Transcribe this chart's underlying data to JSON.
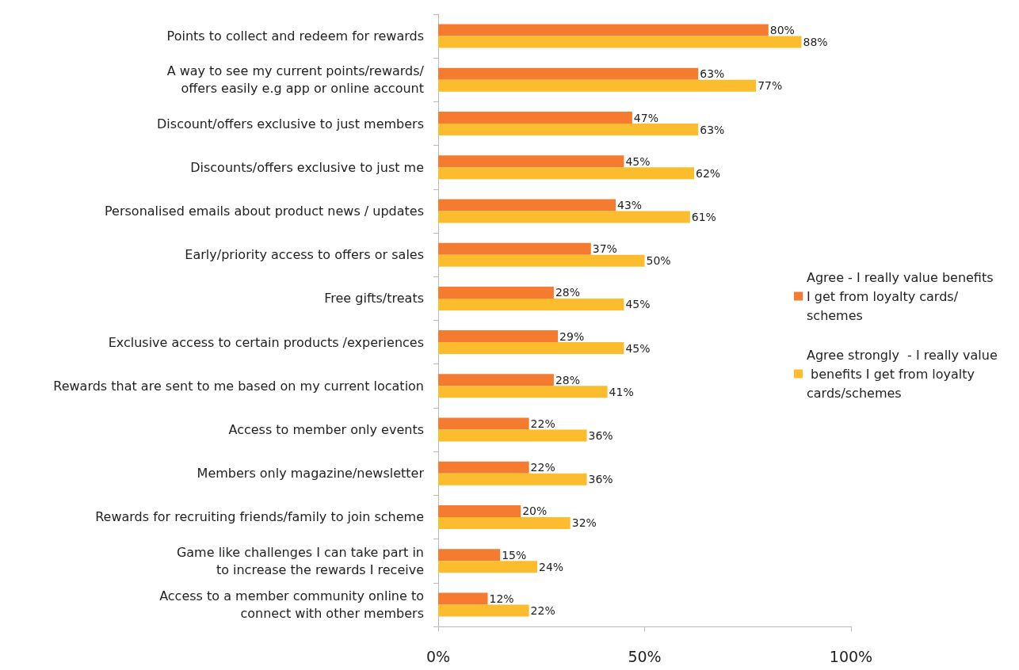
{
  "chart_data": {
    "type": "bar",
    "orientation": "horizontal",
    "categories": [
      "Points to collect and redeem for rewards",
      "A way to see my current points/rewards/\noffers easily e.g app or online account",
      "Discount/offers exclusive to just members",
      "Discounts/offers exclusive to just me",
      "Personalised emails about product news / updates",
      "Early/priority access to offers or sales",
      "Free gifts/treats",
      "Exclusive access to certain products /experiences",
      "Rewards that are sent to me based on my current location",
      "Access to member only events",
      "Members only magazine/newsletter",
      "Rewards for recruiting friends/family to join scheme",
      "Game like challenges I can take part in\nto increase the rewards I receive",
      "Access to a member community online to\nconnect with other members"
    ],
    "series": [
      {
        "name": "Agree - I really value benefits I get from loyalty cards/schemes",
        "color": "#f47b30",
        "values": [
          80,
          63,
          47,
          45,
          43,
          37,
          28,
          29,
          28,
          22,
          22,
          20,
          15,
          12
        ],
        "value_labels": [
          "80%",
          "63%",
          "47%",
          "45%",
          "43%",
          "37%",
          "28%",
          "29%",
          "28%",
          "22%",
          "22%",
          "20%",
          "15%",
          "12%"
        ]
      },
      {
        "name": "Agree strongly  - I really value benefits I get from loyalty cards/schemes",
        "color": "#fbbc2e",
        "values": [
          88,
          77,
          63,
          62,
          61,
          50,
          45,
          45,
          41,
          36,
          36,
          32,
          24,
          22
        ],
        "value_labels": [
          "88%",
          "77%",
          "63%",
          "62%",
          "61%",
          "50%",
          "45%",
          "45%",
          "41%",
          "36%",
          "36%",
          "32%",
          "24%",
          "22%"
        ]
      }
    ],
    "xlim": [
      0,
      100
    ],
    "xticks": [
      {
        "value": 0,
        "label": "0%"
      },
      {
        "value": 50,
        "label": "50%"
      },
      {
        "value": 100,
        "label": "100%"
      }
    ],
    "grid": false,
    "legend": "right"
  }
}
